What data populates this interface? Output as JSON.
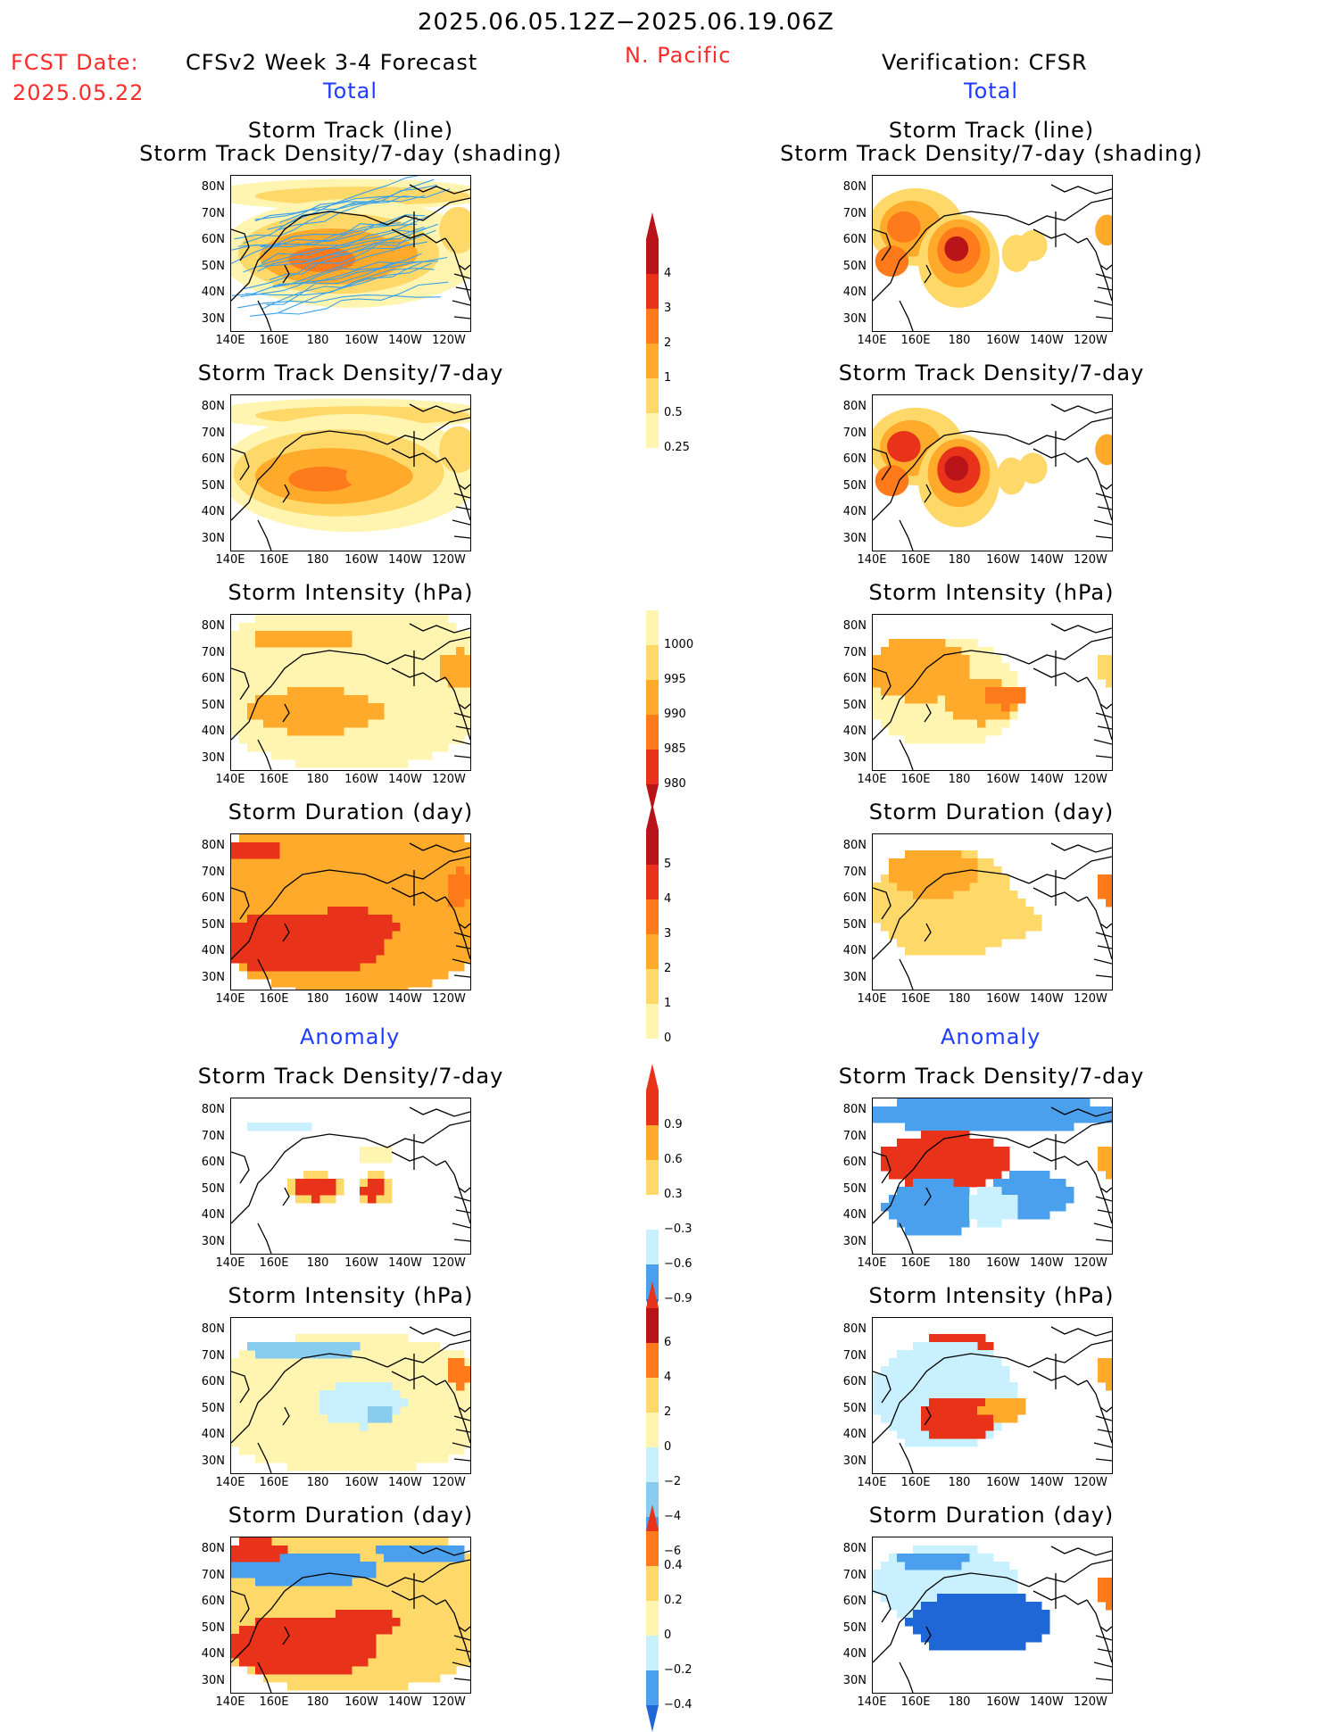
{
  "header": {
    "date_range": "2025.06.05.12Z−2025.06.19.06Z",
    "fcst_label": "FCST Date:",
    "fcst_date": "2025.05.22",
    "model_title": "CFSv2 Week 3-4 Forecast",
    "region": "N. Pacific",
    "verification": "Verification: CFSR",
    "left_total": "Total",
    "right_total": "Total",
    "left_anomaly": "Anomaly",
    "right_anomaly": "Anomaly"
  },
  "panel_titles": {
    "track_line": "Storm Track (line)",
    "track_shading": "Storm Track Density/7-day (shading)",
    "density": "Storm Track Density/7-day",
    "intensity": "Storm Intensity (hPa)",
    "duration": "Storm Duration (day)"
  },
  "axes": {
    "lat_labels": [
      "80N",
      "70N",
      "60N",
      "50N",
      "40N",
      "30N"
    ],
    "lon_labels": [
      "140E",
      "160E",
      "180",
      "160W",
      "140W",
      "120W"
    ]
  },
  "colorbars": {
    "density": [
      "4",
      "3",
      "2",
      "1",
      "0.5",
      "0.25"
    ],
    "intensity": [
      "1000",
      "995",
      "990",
      "985",
      "980"
    ],
    "duration": [
      "5",
      "4",
      "3",
      "2",
      "1",
      "0"
    ],
    "density_anom": [
      "0.9",
      "0.6",
      "0.3",
      "−0.3",
      "−0.6",
      "−0.9"
    ],
    "intensity_anom": [
      "6",
      "4",
      "2",
      "0",
      "−2",
      "−4",
      "−6"
    ],
    "duration_anom": [
      "0.4",
      "0.2",
      "0",
      "−0.2",
      "−0.4"
    ]
  },
  "colors": {
    "c1": "#fff5b0",
    "c2": "#ffd86a",
    "c3": "#ffaa2a",
    "c4": "#ff7a1a",
    "c5": "#e8321a",
    "c6": "#b8141a",
    "b1": "#c8f0ff",
    "b2": "#88ccf0",
    "b3": "#4aa0ec",
    "b4": "#1f66d6",
    "track": "#3aa0e8"
  }
}
